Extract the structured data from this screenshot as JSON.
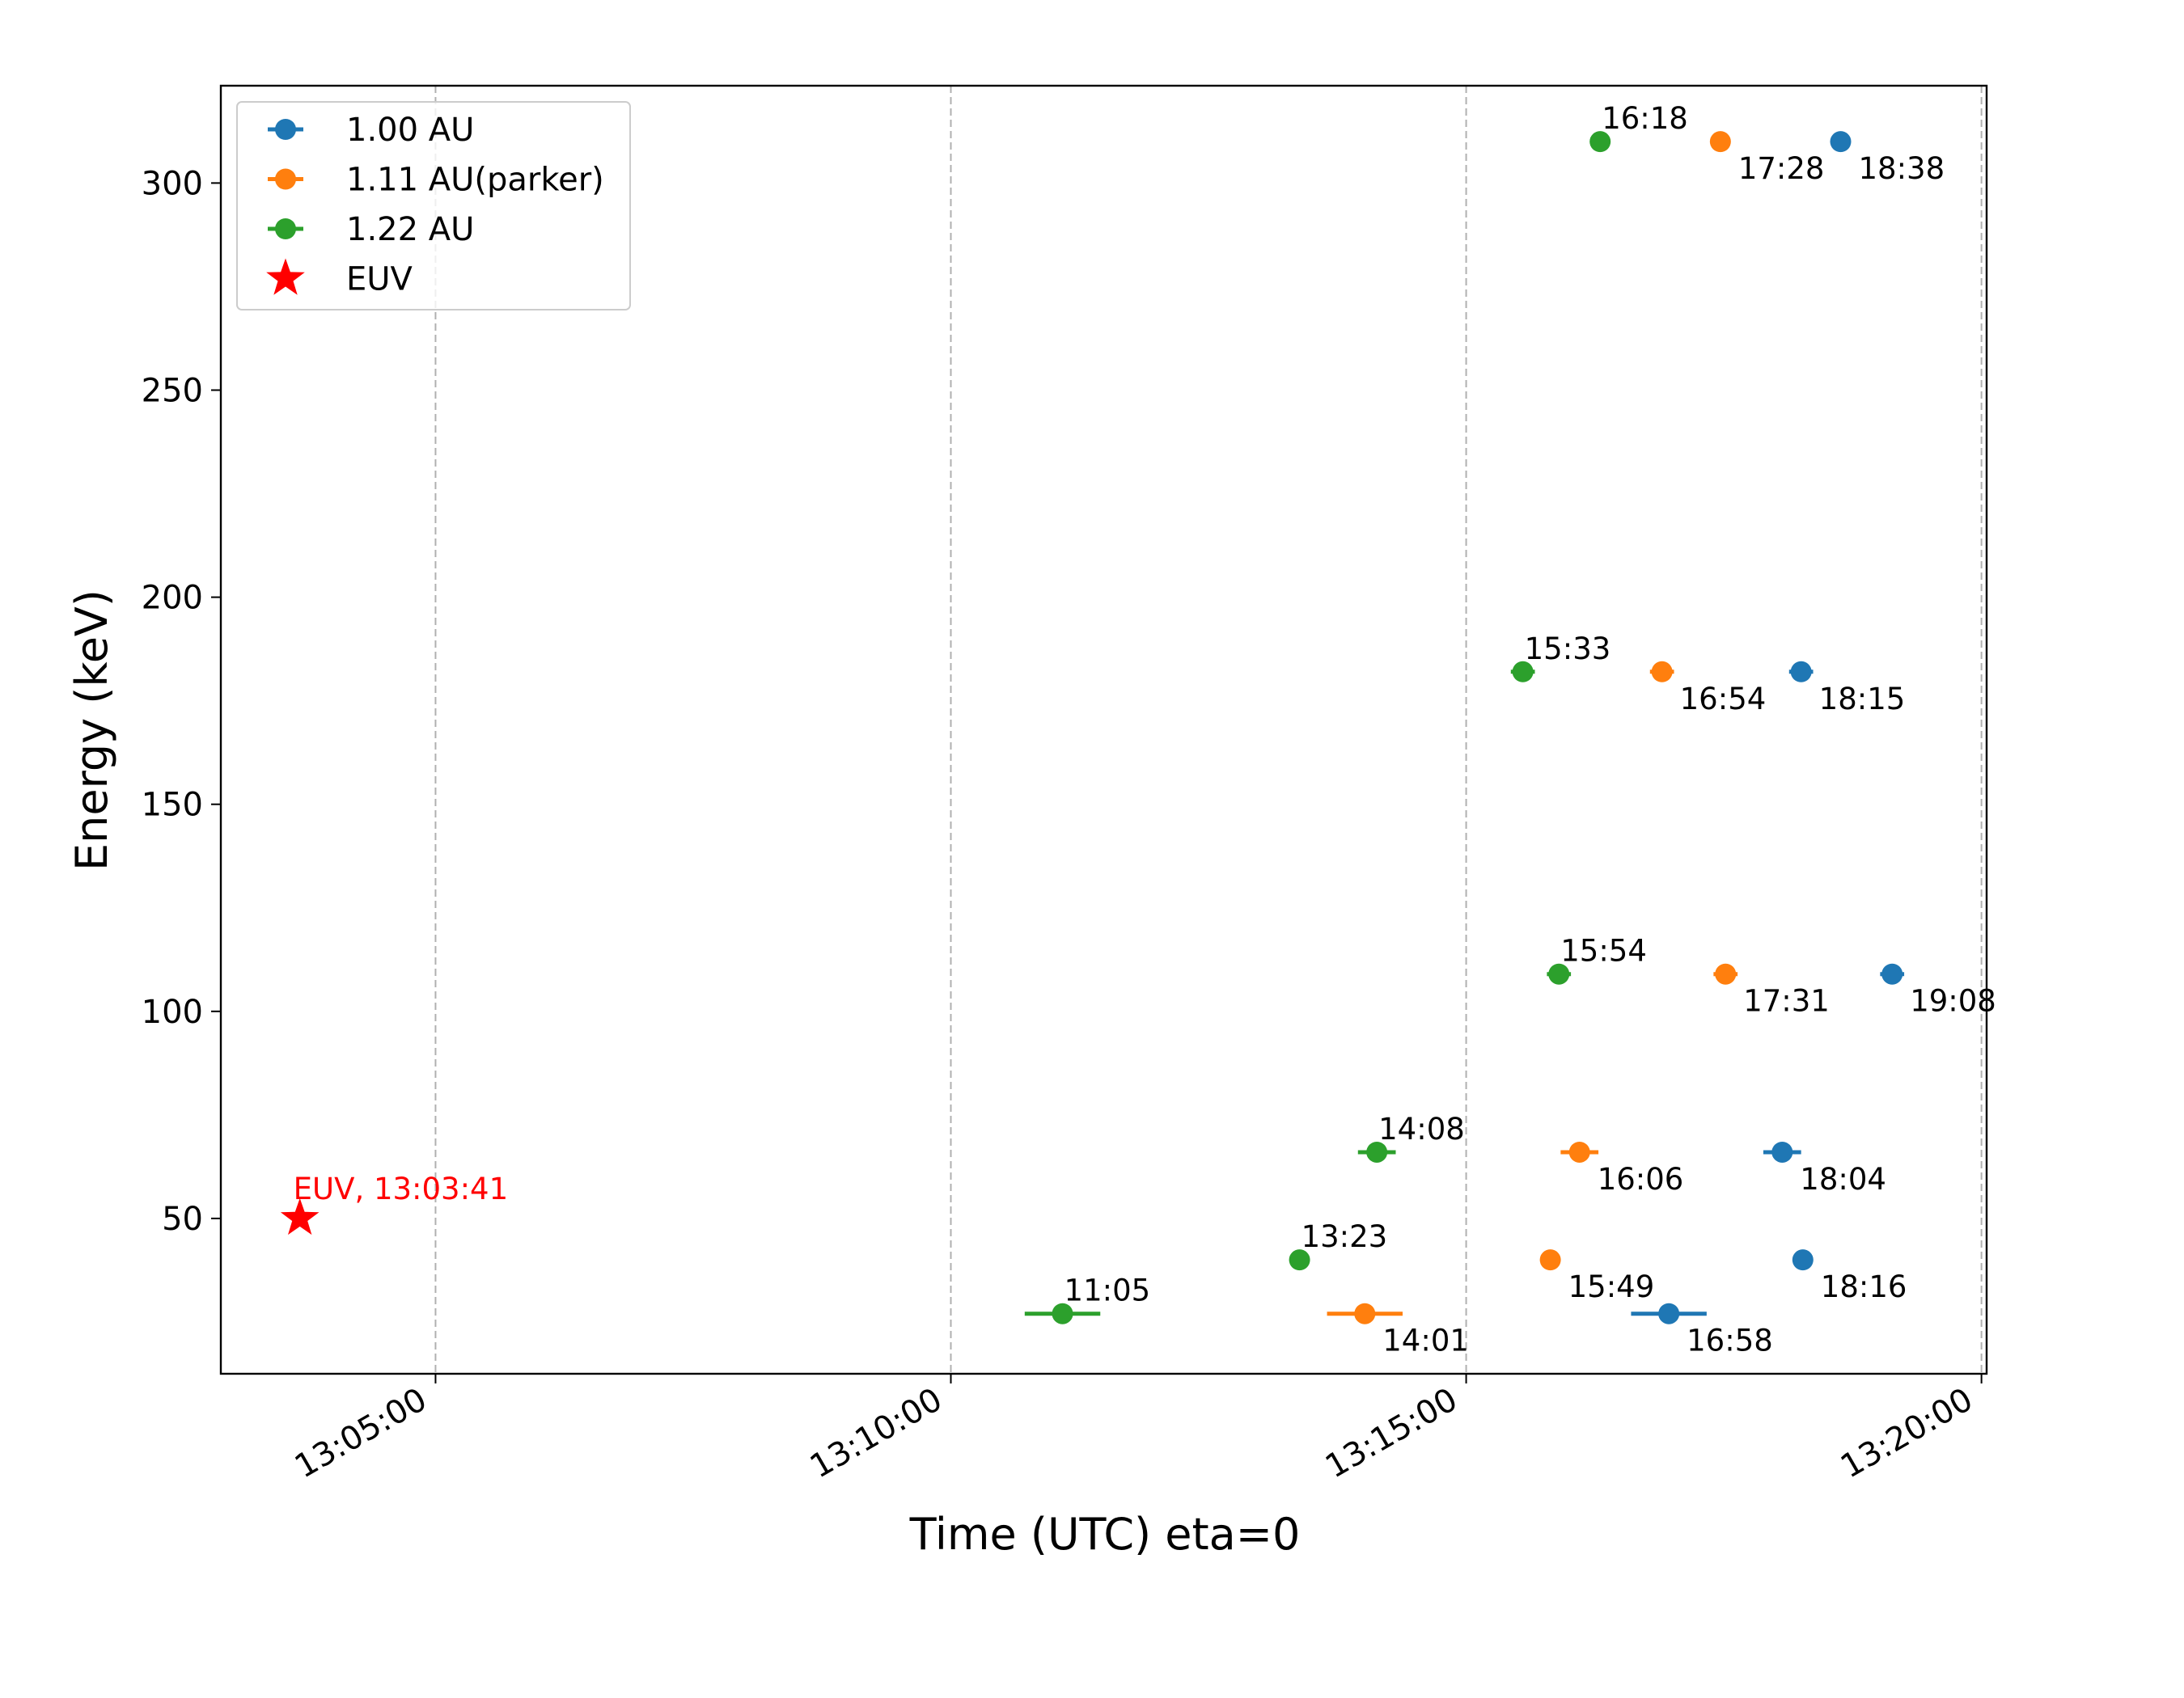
{
  "chart_data": {
    "type": "scatter",
    "xlabel": "Time (UTC) eta=0",
    "ylabel": "Energy (keV)",
    "xlim": [
      "13:02:55",
      "13:20:03"
    ],
    "ylim": [
      12.5,
      323.5
    ],
    "x_ticks": [
      "13:05:00",
      "13:10:00",
      "13:15:00",
      "13:20:00"
    ],
    "y_ticks": [
      50,
      100,
      150,
      200,
      250,
      300
    ],
    "grid": "vertical dashed lines at x ticks",
    "legend_position": "upper left",
    "series": [
      {
        "name": "1.00 AU",
        "color": "#1f77b4",
        "points": [
          {
            "x": "13:16:58",
            "y": 27,
            "xerr_s": 22,
            "label": "16:58"
          },
          {
            "x": "13:18:16",
            "y": 40,
            "xerr_s": 3,
            "label": "18:16"
          },
          {
            "x": "13:18:04",
            "y": 66,
            "xerr_s": 11,
            "label": "18:04"
          },
          {
            "x": "13:19:08",
            "y": 109,
            "xerr_s": 7,
            "label": "19:08"
          },
          {
            "x": "13:18:15",
            "y": 182,
            "xerr_s": 7,
            "label": "18:15"
          },
          {
            "x": "13:18:38",
            "y": 310,
            "xerr_s": 4,
            "label": "18:38"
          }
        ]
      },
      {
        "name": "1.11 AU(parker)",
        "color": "#ff7f0e",
        "points": [
          {
            "x": "13:14:01",
            "y": 27,
            "xerr_s": 22,
            "label": "14:01"
          },
          {
            "x": "13:15:49",
            "y": 40,
            "xerr_s": 3,
            "label": "15:49"
          },
          {
            "x": "13:16:06",
            "y": 66,
            "xerr_s": 11,
            "label": "16:06"
          },
          {
            "x": "13:17:31",
            "y": 109,
            "xerr_s": 7,
            "label": "17:31"
          },
          {
            "x": "13:16:54",
            "y": 182,
            "xerr_s": 7,
            "label": "16:54"
          },
          {
            "x": "13:17:28",
            "y": 310,
            "xerr_s": 4,
            "label": "17:28"
          }
        ]
      },
      {
        "name": "1.22 AU",
        "color": "#2ca02c",
        "points": [
          {
            "x": "13:11:05",
            "y": 27,
            "xerr_s": 22,
            "label": "11:05"
          },
          {
            "x": "13:13:23",
            "y": 40,
            "xerr_s": 3,
            "label": "13:23"
          },
          {
            "x": "13:14:08",
            "y": 66,
            "xerr_s": 11,
            "label": "14:08"
          },
          {
            "x": "13:15:54",
            "y": 109,
            "xerr_s": 7,
            "label": "15:54"
          },
          {
            "x": "13:15:33",
            "y": 182,
            "xerr_s": 7,
            "label": "15:33"
          },
          {
            "x": "13:16:18",
            "y": 310,
            "xerr_s": 4,
            "label": "16:18"
          }
        ]
      }
    ],
    "euv": {
      "name": "EUV",
      "color": "#ff0000",
      "marker": "star",
      "x": "13:03:41",
      "y": 50,
      "label": "EUV, 13:03:41"
    }
  }
}
